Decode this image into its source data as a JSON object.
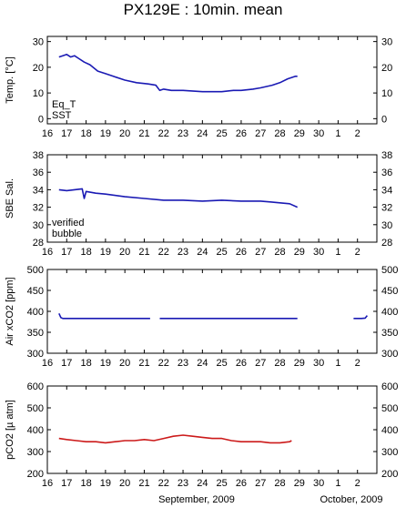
{
  "title": "PX129E : 10min. mean",
  "footer": {
    "left": "September, 2009",
    "right": "October, 2009"
  },
  "x_ticks": [
    "16",
    "17",
    "18",
    "19",
    "20",
    "21",
    "22",
    "23",
    "24",
    "25",
    "26",
    "27",
    "28",
    "29",
    "30",
    "1",
    "2"
  ],
  "colors": {
    "blue": "#1a1ab4",
    "red": "#cc1a1a",
    "magenta": "#cc00cc"
  },
  "chart_data": [
    {
      "type": "line",
      "ylabel": "Temp. [°C]",
      "ylim": [
        -2,
        32
      ],
      "yticks": [
        0,
        10,
        20,
        30
      ],
      "xlim": [
        16,
        33
      ],
      "legend": [
        {
          "label": "Eq_T",
          "color": "#cc1a1a"
        },
        {
          "label": "SST",
          "color": "#1a1ab4"
        }
      ],
      "series": [
        {
          "name": "SST",
          "color": "#1a1ab4",
          "x": [
            16.6,
            16.8,
            17.0,
            17.2,
            17.4,
            17.6,
            17.9,
            18.2,
            18.6,
            19.0,
            19.4,
            20.0,
            20.6,
            21.2,
            21.6,
            21.8,
            22.0,
            22.4,
            23.0,
            24.0,
            25.0,
            25.6,
            26.0,
            26.6,
            27.0,
            27.6,
            28.0,
            28.4,
            28.8,
            28.9
          ],
          "y": [
            24,
            24.5,
            25,
            24,
            24.5,
            23.5,
            22,
            21,
            18.5,
            17.5,
            16.5,
            15,
            14,
            13.5,
            13,
            11,
            11.5,
            11,
            11,
            10.5,
            10.5,
            11,
            11,
            11.5,
            12,
            13,
            14,
            15.5,
            16.5,
            16.5
          ]
        }
      ]
    },
    {
      "type": "line",
      "ylabel": "SBE Sal.",
      "ylim": [
        28,
        38
      ],
      "yticks": [
        28,
        30,
        32,
        34,
        36,
        38
      ],
      "xlim": [
        16,
        33
      ],
      "legend": [
        {
          "label": "verified",
          "color": "#1a1ab4"
        },
        {
          "label": "bubble",
          "color": "#cc00cc"
        }
      ],
      "series": [
        {
          "name": "verified",
          "color": "#1a1ab4",
          "x": [
            16.6,
            17.0,
            17.4,
            17.8,
            17.9,
            18.0,
            18.5,
            19.0,
            20.0,
            21.0,
            22.0,
            23.0,
            24.0,
            25.0,
            26.0,
            27.0,
            27.5,
            28.0,
            28.5,
            28.9
          ],
          "y": [
            34,
            33.9,
            34,
            34.1,
            33.0,
            33.8,
            33.6,
            33.5,
            33.2,
            33.0,
            32.8,
            32.8,
            32.7,
            32.8,
            32.7,
            32.7,
            32.6,
            32.5,
            32.4,
            32.0
          ]
        }
      ]
    },
    {
      "type": "line",
      "ylabel": "Air xCO2 [ppm]",
      "ylim": [
        300,
        500
      ],
      "yticks": [
        300,
        350,
        400,
        450,
        500
      ],
      "xlim": [
        16,
        33
      ],
      "series": [
        {
          "name": "",
          "color": "#1a1ab4",
          "x": [
            16.6,
            16.7,
            16.8,
            17.0,
            18.0,
            19.0,
            20.0,
            21.0,
            21.3
          ],
          "y": [
            395,
            385,
            383,
            383,
            383,
            383,
            383,
            383,
            383
          ]
        },
        {
          "name": "",
          "color": "#1a1ab4",
          "x": [
            21.8,
            23.0,
            24.0,
            25.0,
            26.0,
            27.0,
            28.0,
            28.9
          ],
          "y": [
            383,
            383,
            383,
            383,
            383,
            383,
            383,
            383
          ]
        },
        {
          "name": "",
          "color": "#1a1ab4",
          "x": [
            31.8,
            32.2,
            32.4,
            32.5
          ],
          "y": [
            383,
            383,
            384,
            390
          ]
        }
      ]
    },
    {
      "type": "line",
      "ylabel": "pCO2 [µ atm]",
      "ylim": [
        200,
        600
      ],
      "yticks": [
        200,
        300,
        400,
        500,
        600
      ],
      "xlim": [
        16,
        33
      ],
      "series": [
        {
          "name": "",
          "color": "#cc1a1a",
          "x": [
            16.6,
            17.0,
            17.5,
            18.0,
            18.5,
            19.0,
            19.5,
            20.0,
            20.5,
            21.0,
            21.5,
            22.0,
            22.5,
            23.0,
            23.5,
            24.0,
            24.5,
            25.0,
            25.5,
            26.0,
            26.5,
            27.0,
            27.5,
            28.0,
            28.5,
            28.6
          ],
          "y": [
            360,
            355,
            350,
            345,
            345,
            340,
            345,
            350,
            350,
            355,
            350,
            360,
            370,
            375,
            370,
            365,
            360,
            360,
            350,
            345,
            345,
            345,
            340,
            340,
            345,
            350
          ]
        }
      ]
    }
  ]
}
